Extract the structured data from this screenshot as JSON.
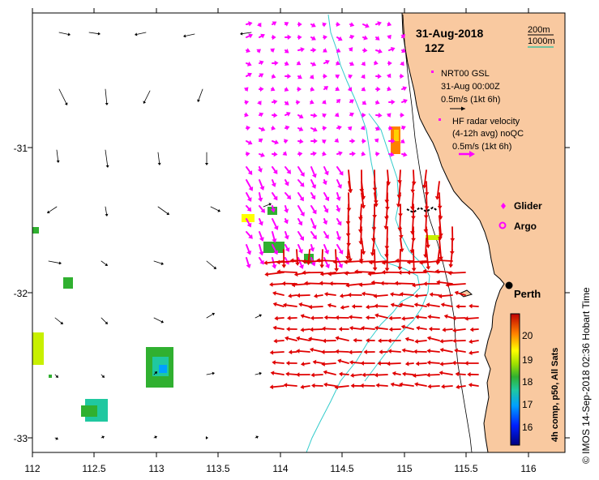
{
  "map": {
    "date": "31-Aug-2018",
    "hour": "12Z",
    "x_ticks": [
      "112",
      "112.5",
      "113",
      "113.5",
      "114",
      "114.5",
      "115",
      "115.5",
      "116"
    ],
    "y_ticks": [
      "-31",
      "-32",
      "-33"
    ],
    "lon_range": [
      112,
      116.3
    ],
    "lat_range": [
      -30.1,
      -33.1
    ]
  },
  "legend": {
    "isobath_labels": [
      "200m",
      "1000m"
    ],
    "isobath_colors": [
      "#1a1a1a",
      "#40c0a0"
    ],
    "gsl_title": "NRT00 GSL",
    "gsl_time": "31-Aug 00:00Z",
    "gsl_scale": "0.5m/s (1kt 6h)",
    "hf_title": "HF radar velocity",
    "hf_detail": "(4-12h avg) noQC",
    "hf_scale": "0.5m/s (1kt 6h)",
    "glider_label": "Glider",
    "argo_label": "Argo",
    "city_label": "Perth"
  },
  "colorbar": {
    "label": "4h comp, p50, All Sats",
    "ticks": [
      "20",
      "19",
      "18",
      "17",
      "16"
    ],
    "range": [
      15.4,
      20.8
    ]
  },
  "credit": "© IMOS 14-Sep-2018 02:36 Hobart Time",
  "colors": {
    "land": "#f9c9a0",
    "gsl_arrow": "#000000",
    "hf_magenta": "#ff00ff",
    "hf_red": "#e00000",
    "isobath_200": "#000000",
    "isobath_1000": "#33cccc",
    "glider": "#ff00ff",
    "argo": "#ff00ff"
  }
}
